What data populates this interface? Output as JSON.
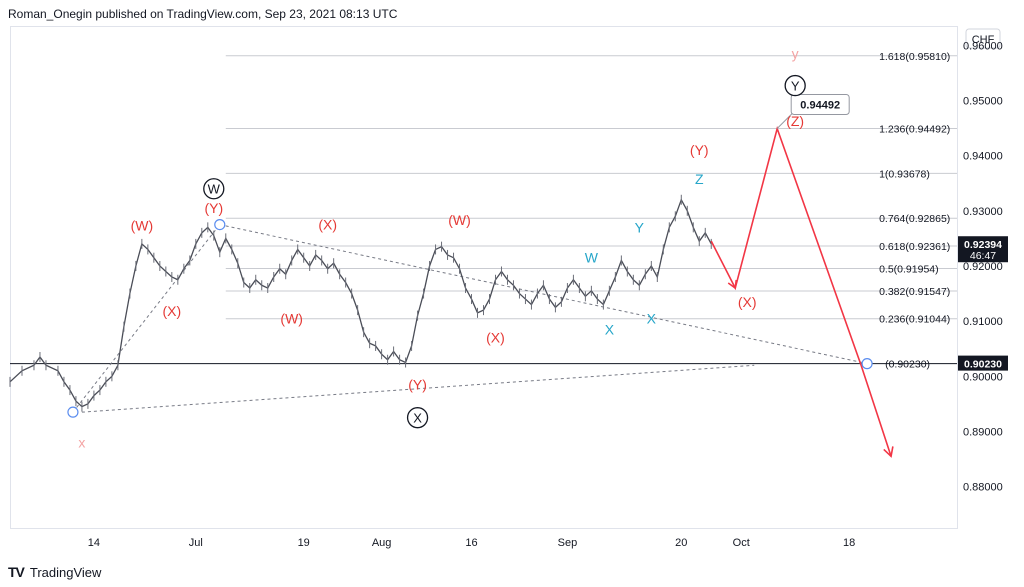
{
  "header": "Roman_Onegin published on TradingView.com, Sep 23, 2021 08:13 UTC",
  "footer": {
    "logo": "TV",
    "brand": "TradingView"
  },
  "currency": "CHF",
  "chart_data": {
    "type": "line",
    "title": "",
    "x_ticks": [
      {
        "label": "14",
        "day": 14
      },
      {
        "label": "Jul",
        "day": 31
      },
      {
        "label": "19",
        "day": 49
      },
      {
        "label": "Aug",
        "day": 62
      },
      {
        "label": "16",
        "day": 77
      },
      {
        "label": "Sep",
        "day": 93
      },
      {
        "label": "20",
        "day": 112
      },
      {
        "label": "Oct",
        "day": 122
      },
      {
        "label": "18",
        "day": 140
      }
    ],
    "y_ticks": [
      0.88,
      0.89,
      0.9,
      0.91,
      0.92,
      0.93,
      0.94,
      0.95,
      0.96
    ],
    "ylim": [
      0.8725,
      0.9635
    ],
    "xlim": [
      0,
      158
    ],
    "price_series": [
      [
        0,
        0.899
      ],
      [
        2,
        0.901
      ],
      [
        4,
        0.902
      ],
      [
        5,
        0.9035
      ],
      [
        6,
        0.902
      ],
      [
        8,
        0.901
      ],
      [
        9,
        0.899
      ],
      [
        10,
        0.8975
      ],
      [
        11,
        0.8955
      ],
      [
        12,
        0.8945
      ],
      [
        13,
        0.895
      ],
      [
        14,
        0.8965
      ],
      [
        15,
        0.8975
      ],
      [
        16,
        0.899
      ],
      [
        17,
        0.9
      ],
      [
        18,
        0.902
      ],
      [
        19,
        0.909
      ],
      [
        20,
        0.915
      ],
      [
        21,
        0.92
      ],
      [
        22,
        0.924
      ],
      [
        23,
        0.923
      ],
      [
        24,
        0.9215
      ],
      [
        25,
        0.92
      ],
      [
        26,
        0.919
      ],
      [
        27,
        0.918
      ],
      [
        28,
        0.9175
      ],
      [
        29,
        0.9195
      ],
      [
        30,
        0.921
      ],
      [
        31,
        0.924
      ],
      [
        32,
        0.926
      ],
      [
        33,
        0.927
      ],
      [
        34,
        0.9255
      ],
      [
        35,
        0.9225
      ],
      [
        36,
        0.925
      ],
      [
        37,
        0.923
      ],
      [
        38,
        0.9205
      ],
      [
        39,
        0.917
      ],
      [
        40,
        0.916
      ],
      [
        41,
        0.9175
      ],
      [
        42,
        0.9165
      ],
      [
        43,
        0.916
      ],
      [
        44,
        0.918
      ],
      [
        45,
        0.9195
      ],
      [
        46,
        0.9185
      ],
      [
        47,
        0.921
      ],
      [
        48,
        0.923
      ],
      [
        49,
        0.9215
      ],
      [
        50,
        0.92
      ],
      [
        51,
        0.922
      ],
      [
        52,
        0.921
      ],
      [
        53,
        0.9195
      ],
      [
        54,
        0.9205
      ],
      [
        55,
        0.9185
      ],
      [
        56,
        0.917
      ],
      [
        57,
        0.915
      ],
      [
        58,
        0.912
      ],
      [
        59,
        0.908
      ],
      [
        60,
        0.906
      ],
      [
        61,
        0.9055
      ],
      [
        62,
        0.904
      ],
      [
        63,
        0.903
      ],
      [
        64,
        0.9045
      ],
      [
        65,
        0.903
      ],
      [
        66,
        0.9025
      ],
      [
        67,
        0.9055
      ],
      [
        68,
        0.911
      ],
      [
        69,
        0.915
      ],
      [
        70,
        0.92
      ],
      [
        71,
        0.923
      ],
      [
        72,
        0.9235
      ],
      [
        73,
        0.922
      ],
      [
        74,
        0.9215
      ],
      [
        75,
        0.9195
      ],
      [
        76,
        0.916
      ],
      [
        77,
        0.914
      ],
      [
        78,
        0.9115
      ],
      [
        79,
        0.912
      ],
      [
        80,
        0.914
      ],
      [
        81,
        0.9175
      ],
      [
        82,
        0.919
      ],
      [
        83,
        0.9175
      ],
      [
        84,
        0.9165
      ],
      [
        85,
        0.915
      ],
      [
        86,
        0.914
      ],
      [
        87,
        0.913
      ],
      [
        88,
        0.915
      ],
      [
        89,
        0.9165
      ],
      [
        90,
        0.914
      ],
      [
        91,
        0.9125
      ],
      [
        92,
        0.9135
      ],
      [
        93,
        0.916
      ],
      [
        94,
        0.9175
      ],
      [
        95,
        0.916
      ],
      [
        96,
        0.9145
      ],
      [
        97,
        0.9155
      ],
      [
        98,
        0.914
      ],
      [
        99,
        0.913
      ],
      [
        100,
        0.9155
      ],
      [
        101,
        0.918
      ],
      [
        102,
        0.921
      ],
      [
        103,
        0.919
      ],
      [
        104,
        0.9175
      ],
      [
        105,
        0.9165
      ],
      [
        106,
        0.9185
      ],
      [
        107,
        0.92
      ],
      [
        108,
        0.918
      ],
      [
        109,
        0.923
      ],
      [
        110,
        0.927
      ],
      [
        111,
        0.929
      ],
      [
        112,
        0.932
      ],
      [
        113,
        0.93
      ],
      [
        114,
        0.927
      ],
      [
        115,
        0.9245
      ],
      [
        116,
        0.926
      ],
      [
        117,
        0.924
      ]
    ],
    "fib_levels": [
      {
        "label": "1.618(0.95810)",
        "value": 0.9581
      },
      {
        "label": "1.236(0.94492)",
        "value": 0.94492
      },
      {
        "label": "1(0.93678)",
        "value": 0.93678
      },
      {
        "label": "0.764(0.92865)",
        "value": 0.92865
      },
      {
        "label": "0.618(0.92361)",
        "value": 0.92361
      },
      {
        "label": "0.5(0.91954)",
        "value": 0.91954
      },
      {
        "label": "0.382(0.91547)",
        "value": 0.91547
      },
      {
        "label": "0.236(0.91044)",
        "value": 0.91044
      },
      {
        "label": "(0.90230)",
        "value": 0.9023
      }
    ],
    "trendline": [
      [
        12,
        0.8935
      ],
      [
        120,
        0.902
      ]
    ],
    "projection": [
      [
        117,
        0.9245
      ],
      [
        121,
        0.916
      ],
      [
        128,
        0.9449
      ],
      [
        142,
        0.902
      ],
      [
        147,
        0.8855
      ]
    ],
    "price_tags": [
      {
        "label": "0.92394",
        "sub": "46:47",
        "value": 0.92394,
        "color": "#131722"
      },
      {
        "label": "0.90230",
        "sub": "",
        "value": 0.9023,
        "color": "#131722"
      }
    ],
    "callout": {
      "label": "0.94492",
      "day": 128,
      "value": 0.94492
    },
    "wave_labels": [
      {
        "text": "x",
        "day": 12,
        "value": 0.888,
        "color": "#f4a3a3",
        "style": "plain"
      },
      {
        "text": "(W)",
        "day": 22,
        "value": 0.9273,
        "color": "#e53935",
        "style": "plain"
      },
      {
        "text": "(X)",
        "day": 27,
        "value": 0.9118,
        "color": "#e53935",
        "style": "plain"
      },
      {
        "text": "(Y)",
        "day": 34,
        "value": 0.9305,
        "color": "#e53935",
        "style": "plain"
      },
      {
        "text": "W",
        "day": 34,
        "value": 0.934,
        "color": "#131722",
        "style": "circle"
      },
      {
        "text": "(W)",
        "day": 47,
        "value": 0.9105,
        "color": "#e53935",
        "style": "plain"
      },
      {
        "text": "(X)",
        "day": 53,
        "value": 0.9275,
        "color": "#e53935",
        "style": "plain"
      },
      {
        "text": "(W)",
        "day": 75,
        "value": 0.9283,
        "color": "#e53935",
        "style": "plain"
      },
      {
        "text": "(Y)",
        "day": 68,
        "value": 0.8985,
        "color": "#e53935",
        "style": "plain"
      },
      {
        "text": "X",
        "day": 68,
        "value": 0.8925,
        "color": "#131722",
        "style": "circle"
      },
      {
        "text": "(X)",
        "day": 81,
        "value": 0.907,
        "color": "#e53935",
        "style": "plain"
      },
      {
        "text": "W",
        "day": 97,
        "value": 0.9215,
        "color": "#26a6c9",
        "style": "plain"
      },
      {
        "text": "X",
        "day": 100,
        "value": 0.9085,
        "color": "#26a6c9",
        "style": "plain"
      },
      {
        "text": "Y",
        "day": 105,
        "value": 0.927,
        "color": "#26a6c9",
        "style": "plain"
      },
      {
        "text": "X",
        "day": 107,
        "value": 0.9105,
        "color": "#26a6c9",
        "style": "plain"
      },
      {
        "text": "Z",
        "day": 115,
        "value": 0.9358,
        "color": "#26a6c9",
        "style": "plain"
      },
      {
        "text": "(Y)",
        "day": 115,
        "value": 0.941,
        "color": "#e53935",
        "style": "plain"
      },
      {
        "text": "(X)",
        "day": 123,
        "value": 0.9135,
        "color": "#e53935",
        "style": "plain"
      },
      {
        "text": "(Z)",
        "day": 131,
        "value": 0.9463,
        "color": "#e53935",
        "style": "plain"
      },
      {
        "text": "Y",
        "day": 131,
        "value": 0.9527,
        "color": "#131722",
        "style": "circle"
      },
      {
        "text": "y",
        "day": 131,
        "value": 0.9585,
        "color": "#f4a3a3",
        "style": "plain"
      }
    ],
    "markers": [
      [
        10.5,
        0.8935
      ],
      [
        35,
        0.9275
      ],
      [
        143,
        0.9023
      ]
    ]
  }
}
